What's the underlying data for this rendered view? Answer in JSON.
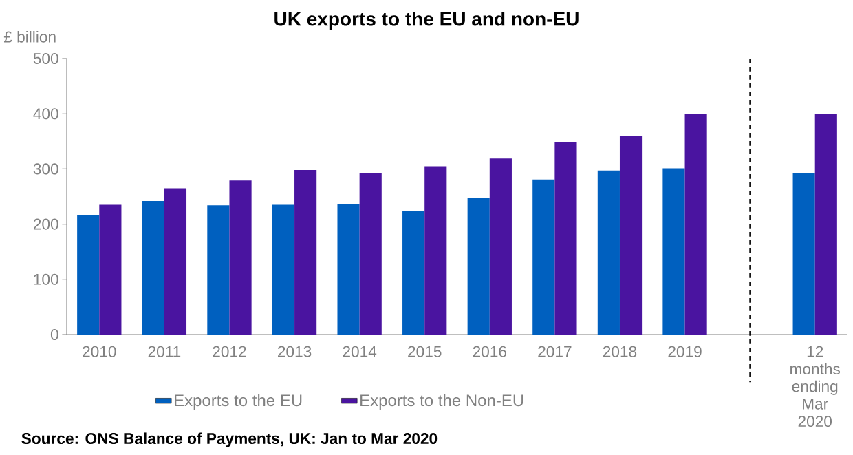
{
  "chart_data": {
    "type": "bar",
    "title": "UK exports to the EU and non-EU",
    "ylabel": "£ billion",
    "categories": [
      "2010",
      "2011",
      "2012",
      "2013",
      "2014",
      "2015",
      "2016",
      "2017",
      "2018",
      "2019",
      null,
      "12 months ending Mar 2020"
    ],
    "series": [
      {
        "name": "Exports to the EU",
        "color": "#0060bf",
        "values": [
          217,
          242,
          234,
          235,
          237,
          224,
          247,
          281,
          297,
          301,
          null,
          292
        ]
      },
      {
        "name": "Exports to the Non-EU",
        "color": "#4a14a0",
        "values": [
          235,
          265,
          279,
          298,
          293,
          305,
          319,
          348,
          360,
          400,
          null,
          399
        ]
      }
    ],
    "ylim": [
      0,
      500
    ],
    "yticks": [
      0,
      100,
      200,
      300,
      400,
      500
    ],
    "legend": "bottom",
    "annotations": [
      "Source: ONS Balance of Payments, UK: Jan to Mar 2020"
    ]
  }
}
